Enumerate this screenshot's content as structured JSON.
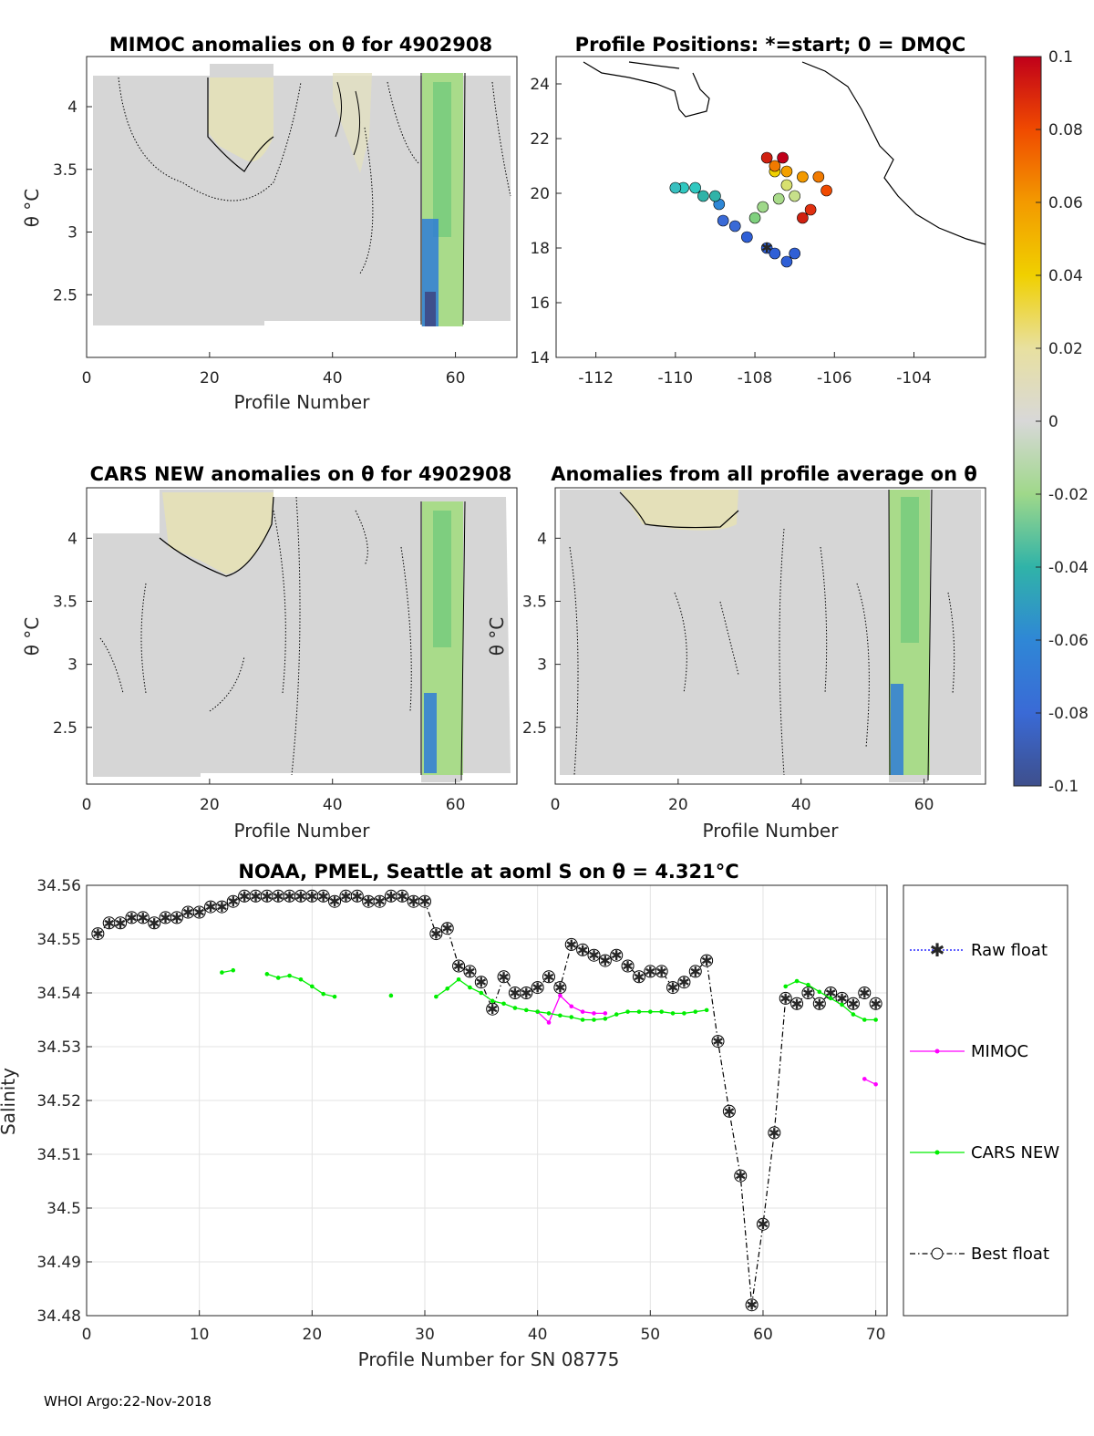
{
  "panels": {
    "mimoc": {
      "title": "MIMOC anomalies on θ  for 4902908",
      "xlabel": "Profile Number",
      "ylabel": "θ °C",
      "xticks": [
        "0",
        "20",
        "40",
        "60"
      ],
      "yticks": [
        "4",
        "3.5",
        "3",
        "2.5"
      ]
    },
    "positions": {
      "title": "Profile Positions: *=start; 0 = DMQC",
      "xticks": [
        "-112",
        "-110",
        "-108",
        "-106",
        "-104"
      ],
      "yticks": [
        "24",
        "22",
        "20",
        "18",
        "16",
        "14"
      ]
    },
    "cars": {
      "title": "CARS NEW anomalies on θ for 4902908",
      "xlabel": "Profile Number",
      "ylabel": "θ °C",
      "xticks": [
        "0",
        "20",
        "40",
        "60"
      ],
      "yticks": [
        "4",
        "3.5",
        "3",
        "2.5"
      ]
    },
    "average": {
      "title": "Anomalies from all profile average on θ",
      "xlabel": "Profile Number",
      "ylabel": "θ °C",
      "xticks": [
        "0",
        "20",
        "40",
        "60"
      ],
      "yticks": [
        "4",
        "3.5",
        "3",
        "2.5"
      ]
    }
  },
  "colorbar": {
    "ticks": [
      "0.1",
      "0.08",
      "0.06",
      "0.04",
      "0.02",
      "0",
      "-0.02",
      "-0.04",
      "-0.06",
      "-0.08",
      "-0.1"
    ]
  },
  "footer": {
    "text": "WHOI Argo:22-Nov-2018"
  },
  "chart_data": {
    "type": "line",
    "title": "NOAA, PMEL, Seattle at aoml S on θ = 4.321°C",
    "xlabel": "Profile Number for SN 08775",
    "ylabel": "Salinity",
    "xlim": [
      0,
      71
    ],
    "ylim": [
      34.48,
      34.56
    ],
    "xticks": [
      "0",
      "10",
      "20",
      "30",
      "40",
      "50",
      "60",
      "70"
    ],
    "yticks": [
      "34.56",
      "34.55",
      "34.54",
      "34.53",
      "34.52",
      "34.51",
      "34.5",
      "34.49",
      "34.48"
    ],
    "grid": true,
    "legend_position": "outside-right",
    "legend": [
      "Raw float",
      "MIMOC",
      "CARS NEW",
      "Best float"
    ],
    "series": [
      {
        "name": "Best float",
        "color": "#000000",
        "marker_color": "#8888ff",
        "x": [
          1,
          2,
          3,
          4,
          5,
          6,
          7,
          8,
          9,
          10,
          11,
          12,
          13,
          14,
          15,
          16,
          17,
          18,
          19,
          20,
          21,
          22,
          23,
          24,
          25,
          26,
          27,
          28,
          29,
          30,
          31,
          32,
          33,
          34,
          35,
          36,
          37,
          38,
          39,
          40,
          41,
          42,
          43,
          44,
          45,
          46,
          47,
          48,
          49,
          50,
          51,
          52,
          53,
          54,
          55,
          56,
          57,
          58,
          59,
          60,
          61,
          62,
          63,
          64,
          65,
          66,
          67,
          68,
          69,
          70
        ],
        "values": [
          34.551,
          34.553,
          34.553,
          34.554,
          34.554,
          34.553,
          34.554,
          34.554,
          34.555,
          34.555,
          34.556,
          34.556,
          34.557,
          34.558,
          34.558,
          34.558,
          34.558,
          34.558,
          34.558,
          34.558,
          34.558,
          34.557,
          34.558,
          34.558,
          34.557,
          34.557,
          34.558,
          34.558,
          34.557,
          34.557,
          34.551,
          34.552,
          34.545,
          34.544,
          34.542,
          34.537,
          34.543,
          34.54,
          34.54,
          34.541,
          34.543,
          34.541,
          34.549,
          34.548,
          34.547,
          34.546,
          34.547,
          34.545,
          34.543,
          34.544,
          34.544,
          34.541,
          34.542,
          34.544,
          34.546,
          34.531,
          34.518,
          34.506,
          34.482,
          34.497,
          34.514,
          34.539,
          34.538,
          34.54,
          34.538,
          34.54,
          34.539,
          34.538,
          34.54,
          34.538
        ]
      },
      {
        "name": "MIMOC",
        "color": "#ff00ff",
        "segments": [
          {
            "x": [
              40,
              41,
              42,
              43,
              44,
              45,
              46
            ],
            "values": [
              34.5365,
              34.5345,
              34.5395,
              34.5375,
              34.5365,
              34.5362,
              34.5362
            ]
          },
          {
            "x": [
              69,
              70
            ],
            "values": [
              34.524,
              34.523
            ]
          }
        ]
      },
      {
        "name": "CARS NEW",
        "color": "#00ee00",
        "segments": [
          {
            "x": [
              12,
              13
            ],
            "values": [
              34.5438,
              34.5442
            ]
          },
          {
            "x": [
              16,
              17,
              18,
              19,
              20,
              21,
              22
            ],
            "values": [
              34.5435,
              34.5428,
              34.5432,
              34.5425,
              34.5412,
              34.5398,
              34.5393
            ]
          },
          {
            "x": [
              27
            ],
            "values": [
              34.5395
            ]
          },
          {
            "x": [
              31,
              32,
              33,
              34,
              35,
              36,
              37,
              38,
              39,
              40,
              41,
              42,
              43,
              44,
              45,
              46,
              47,
              48,
              49,
              50,
              51,
              52,
              53,
              54,
              55
            ],
            "values": [
              34.5393,
              34.5408,
              34.5425,
              34.541,
              34.54,
              34.5385,
              34.538,
              34.5372,
              34.5368,
              34.5365,
              34.5362,
              34.5358,
              34.5355,
              34.535,
              34.535,
              34.5352,
              34.536,
              34.5365,
              34.5365,
              34.5365,
              34.5365,
              34.5362,
              34.5362,
              34.5365,
              34.5368
            ]
          },
          {
            "x": [
              62,
              63,
              64,
              65,
              66,
              67,
              68,
              69,
              70
            ],
            "values": [
              34.5412,
              34.5422,
              34.5415,
              34.5402,
              34.539,
              34.5378,
              34.536,
              34.535,
              34.535
            ]
          }
        ]
      }
    ]
  }
}
